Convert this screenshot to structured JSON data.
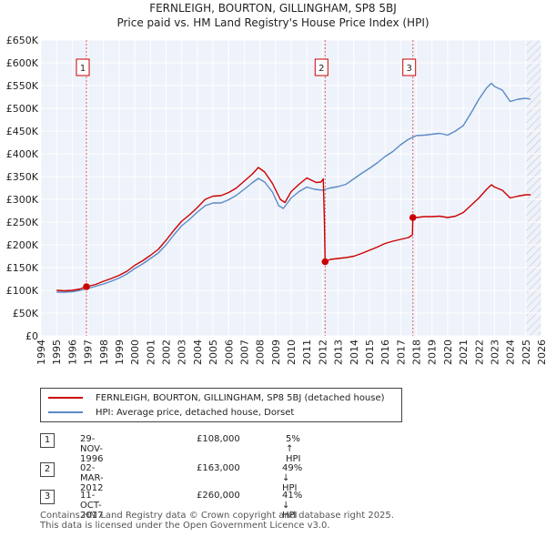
{
  "title_line1": "FERNLEIGH, BOURTON, GILLINGHAM, SP8 5BJ",
  "title_line2": "Price paid vs. HM Land Registry's House Price Index (HPI)",
  "chart_data": {
    "type": "line",
    "title": "FERNLEIGH, BOURTON, GILLINGHAM, SP8 5BJ — Price paid vs. HM Land Registry's House Price Index (HPI)",
    "xlabel": "",
    "ylabel": "",
    "xlim": [
      1994,
      2026
    ],
    "ylim": [
      0,
      650000
    ],
    "x_ticks": [
      1994,
      1995,
      1996,
      1997,
      1998,
      1999,
      2000,
      2001,
      2002,
      2003,
      2004,
      2005,
      2006,
      2007,
      2008,
      2009,
      2010,
      2011,
      2012,
      2013,
      2014,
      2015,
      2016,
      2017,
      2018,
      2019,
      2020,
      2021,
      2022,
      2023,
      2024,
      2025,
      2026
    ],
    "y_ticks": [
      0,
      50000,
      100000,
      150000,
      200000,
      250000,
      300000,
      350000,
      400000,
      450000,
      500000,
      550000,
      600000,
      650000
    ],
    "y_tick_labels": [
      "£0",
      "£50K",
      "£100K",
      "£150K",
      "£200K",
      "£250K",
      "£300K",
      "£350K",
      "£400K",
      "£450K",
      "£500K",
      "£550K",
      "£600K",
      "£650K"
    ],
    "series": [
      {
        "name": "FERNLEIGH, BOURTON, GILLINGHAM, SP8 5BJ (detached house)",
        "color": "#cc0000",
        "points": [
          [
            1995.0,
            100000
          ],
          [
            1995.5,
            99000
          ],
          [
            1996.0,
            100000
          ],
          [
            1996.5,
            103000
          ],
          [
            1996.91,
            108000
          ],
          [
            1997.5,
            113000
          ],
          [
            1998.0,
            120000
          ],
          [
            1998.5,
            126000
          ],
          [
            1999.0,
            133000
          ],
          [
            1999.5,
            142000
          ],
          [
            2000.0,
            155000
          ],
          [
            2000.5,
            165000
          ],
          [
            2001.0,
            177000
          ],
          [
            2001.5,
            190000
          ],
          [
            2002.0,
            210000
          ],
          [
            2002.5,
            232000
          ],
          [
            2003.0,
            252000
          ],
          [
            2003.5,
            266000
          ],
          [
            2004.0,
            282000
          ],
          [
            2004.5,
            300000
          ],
          [
            2005.0,
            307000
          ],
          [
            2005.5,
            308000
          ],
          [
            2006.0,
            315000
          ],
          [
            2006.5,
            325000
          ],
          [
            2007.0,
            340000
          ],
          [
            2007.5,
            355000
          ],
          [
            2007.9,
            370000
          ],
          [
            2008.3,
            360000
          ],
          [
            2008.8,
            335000
          ],
          [
            2009.3,
            300000
          ],
          [
            2009.6,
            293000
          ],
          [
            2010.0,
            317000
          ],
          [
            2010.5,
            333000
          ],
          [
            2011.0,
            347000
          ],
          [
            2011.3,
            342000
          ],
          [
            2011.6,
            337000
          ],
          [
            2011.9,
            338000
          ],
          [
            2012.05,
            345000
          ],
          [
            2012.12,
            260000
          ],
          [
            2012.17,
            163000
          ],
          [
            2012.5,
            168000
          ],
          [
            2013.0,
            170000
          ],
          [
            2013.5,
            172000
          ],
          [
            2014.0,
            175000
          ],
          [
            2014.5,
            181000
          ],
          [
            2015.0,
            188000
          ],
          [
            2015.5,
            195000
          ],
          [
            2016.0,
            203000
          ],
          [
            2016.5,
            208000
          ],
          [
            2017.0,
            212000
          ],
          [
            2017.5,
            216000
          ],
          [
            2017.75,
            222000
          ],
          [
            2017.78,
            260000
          ],
          [
            2018.0,
            260000
          ],
          [
            2018.5,
            262000
          ],
          [
            2019.0,
            262000
          ],
          [
            2019.5,
            263000
          ],
          [
            2020.0,
            260000
          ],
          [
            2020.5,
            263000
          ],
          [
            2021.0,
            271000
          ],
          [
            2021.5,
            287000
          ],
          [
            2022.0,
            303000
          ],
          [
            2022.5,
            322000
          ],
          [
            2022.8,
            332000
          ],
          [
            2023.0,
            327000
          ],
          [
            2023.5,
            320000
          ],
          [
            2024.0,
            303000
          ],
          [
            2024.5,
            307000
          ],
          [
            2025.0,
            310000
          ],
          [
            2025.3,
            310000
          ]
        ]
      },
      {
        "name": "HPI: Average price, detached house, Dorset",
        "color": "#5b8ac6",
        "points": [
          [
            1995.0,
            96000
          ],
          [
            1995.5,
            96000
          ],
          [
            1996.0,
            97000
          ],
          [
            1996.5,
            100000
          ],
          [
            1997.0,
            104000
          ],
          [
            1997.5,
            109000
          ],
          [
            1998.0,
            114000
          ],
          [
            1998.5,
            120000
          ],
          [
            1999.0,
            127000
          ],
          [
            1999.5,
            136000
          ],
          [
            2000.0,
            148000
          ],
          [
            2000.5,
            158000
          ],
          [
            2001.0,
            170000
          ],
          [
            2001.5,
            182000
          ],
          [
            2002.0,
            200000
          ],
          [
            2002.5,
            222000
          ],
          [
            2003.0,
            242000
          ],
          [
            2003.5,
            256000
          ],
          [
            2004.0,
            272000
          ],
          [
            2004.5,
            286000
          ],
          [
            2005.0,
            292000
          ],
          [
            2005.5,
            292000
          ],
          [
            2006.0,
            299000
          ],
          [
            2006.5,
            309000
          ],
          [
            2007.0,
            322000
          ],
          [
            2007.5,
            336000
          ],
          [
            2007.9,
            346000
          ],
          [
            2008.3,
            338000
          ],
          [
            2008.8,
            316000
          ],
          [
            2009.2,
            286000
          ],
          [
            2009.5,
            280000
          ],
          [
            2010.0,
            303000
          ],
          [
            2010.5,
            317000
          ],
          [
            2011.0,
            327000
          ],
          [
            2011.5,
            322000
          ],
          [
            2012.0,
            320000
          ],
          [
            2012.5,
            325000
          ],
          [
            2013.0,
            328000
          ],
          [
            2013.5,
            333000
          ],
          [
            2014.0,
            345000
          ],
          [
            2014.5,
            357000
          ],
          [
            2015.0,
            368000
          ],
          [
            2015.5,
            380000
          ],
          [
            2016.0,
            394000
          ],
          [
            2016.5,
            405000
          ],
          [
            2017.0,
            420000
          ],
          [
            2017.5,
            432000
          ],
          [
            2018.0,
            440000
          ],
          [
            2018.5,
            441000
          ],
          [
            2019.0,
            443000
          ],
          [
            2019.5,
            445000
          ],
          [
            2020.0,
            441000
          ],
          [
            2020.5,
            450000
          ],
          [
            2021.0,
            462000
          ],
          [
            2021.5,
            490000
          ],
          [
            2022.0,
            520000
          ],
          [
            2022.5,
            545000
          ],
          [
            2022.8,
            555000
          ],
          [
            2023.0,
            548000
          ],
          [
            2023.5,
            540000
          ],
          [
            2024.0,
            515000
          ],
          [
            2024.5,
            520000
          ],
          [
            2025.0,
            522000
          ],
          [
            2025.3,
            520000
          ]
        ]
      }
    ],
    "sales": [
      {
        "label": "1",
        "x": 1996.91,
        "price": 108000
      },
      {
        "label": "2",
        "x": 2012.17,
        "price": 163000
      },
      {
        "label": "3",
        "x": 2017.78,
        "price": 260000
      }
    ],
    "shading": {
      "from": 2025.0,
      "to": 2026.0,
      "description": "hatched future period"
    }
  },
  "legend": {
    "items": [
      {
        "label": "FERNLEIGH, BOURTON, GILLINGHAM, SP8 5BJ (detached house)",
        "color": "#cc0000"
      },
      {
        "label": "HPI: Average price, detached house, Dorset",
        "color": "#5b8ac6"
      }
    ]
  },
  "sales_table": [
    {
      "num": "1",
      "date": "29-NOV-1996",
      "price": "£108,000",
      "hpi": "5% ↑ HPI"
    },
    {
      "num": "2",
      "date": "02-MAR-2012",
      "price": "£163,000",
      "hpi": "49% ↓ HPI"
    },
    {
      "num": "3",
      "date": "11-OCT-2017",
      "price": "£260,000",
      "hpi": "41% ↓ HPI"
    }
  ],
  "footer": {
    "line1": "Contains HM Land Registry data © Crown copyright and database right 2025.",
    "line2": "This data is licensed under the Open Government Licence v3.0."
  }
}
